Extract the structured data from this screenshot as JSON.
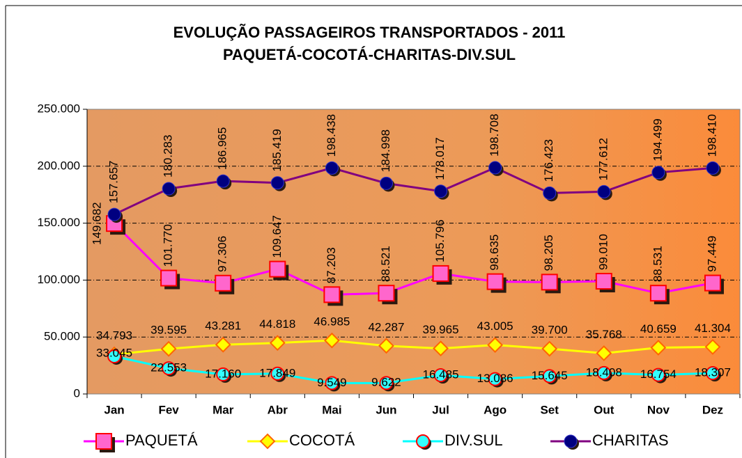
{
  "chart_data": {
    "type": "line",
    "title": "EVOLUÇÃO PASSAGEIROS TRANSPORTADOS - 2011",
    "subtitle": "PAQUETÁ-COCOTÁ-CHARITAS-DIV.SUL",
    "categories": [
      "Jan",
      "Fev",
      "Mar",
      "Abr",
      "Mai",
      "Jun",
      "Jul",
      "Ago",
      "Set",
      "Out",
      "Nov",
      "Dez"
    ],
    "ylim": [
      0,
      250000
    ],
    "yticks": [
      0,
      {
        "value": 50000,
        "label": "50.000"
      },
      {
        "value": 100000,
        "label": "100.000"
      },
      {
        "value": 150000,
        "label": "150.000"
      },
      {
        "value": 200000,
        "label": "200.000"
      },
      {
        "value": 250000,
        "label": "250.000"
      }
    ],
    "grid": true,
    "legend": "bottom",
    "series": [
      {
        "name": "PAQUETÁ",
        "color": "#ff00ff",
        "marker_fill": "#ff66cc",
        "marker_edge": "#ff0000",
        "values": [
          149682,
          101770,
          97306,
          109647,
          87203,
          88521,
          105796,
          98635,
          98205,
          99010,
          88531,
          97449
        ],
        "value_labels": [
          "149.682",
          "101.770",
          "97.306",
          "109.647",
          "87.203",
          "88.521",
          "105.796",
          "98.635",
          "98.205",
          "99.010",
          "88.531",
          "97.449"
        ]
      },
      {
        "name": "COCOTÁ",
        "color": "#ffff00",
        "marker_fill": "#ffff00",
        "marker_edge": "#ff6600",
        "values": [
          34793,
          39595,
          43281,
          44818,
          46985,
          42287,
          39965,
          43005,
          39700,
          35768,
          40659,
          41304
        ],
        "value_labels": [
          "34.793",
          "39.595",
          "43.281",
          "44.818",
          "46.985",
          "42.287",
          "39.965",
          "43.005",
          "39.700",
          "35.768",
          "40.659",
          "41.304"
        ]
      },
      {
        "name": "DIV.SUL",
        "color": "#00ffff",
        "marker_fill": "#33ffff",
        "marker_edge": "#ff0000",
        "values": [
          33045,
          22553,
          17160,
          17849,
          9549,
          9622,
          16485,
          13086,
          15645,
          18408,
          16754,
          18307
        ],
        "value_labels": [
          "33.045",
          "22.553",
          "17.160",
          "17.849",
          "9.549",
          "9.622",
          "16.485",
          "13.086",
          "15.645",
          "18.408",
          "16.754",
          "18.307"
        ]
      },
      {
        "name": "CHARITAS",
        "color": "#800080",
        "marker_fill": "#000080",
        "marker_edge": "#3333cc",
        "values": [
          157657,
          180283,
          186965,
          185419,
          198438,
          184998,
          178017,
          198708,
          176423,
          177612,
          194499,
          198410
        ],
        "value_labels": [
          "157.657",
          "180.283",
          "186.965",
          "185.419",
          "198.438",
          "184.998",
          "178.017",
          "198.708",
          "176.423",
          "177.612",
          "194.499",
          "198.410"
        ]
      }
    ]
  }
}
